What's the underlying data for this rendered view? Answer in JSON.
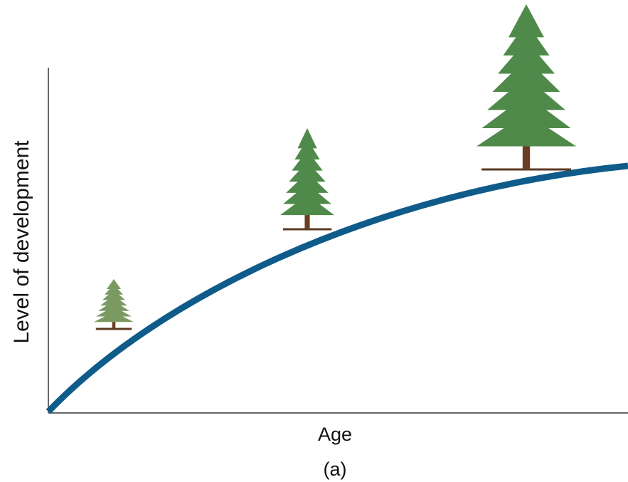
{
  "y_axis_label": "Level of development",
  "x_axis_label": "Age",
  "caption": "(a)"
}
